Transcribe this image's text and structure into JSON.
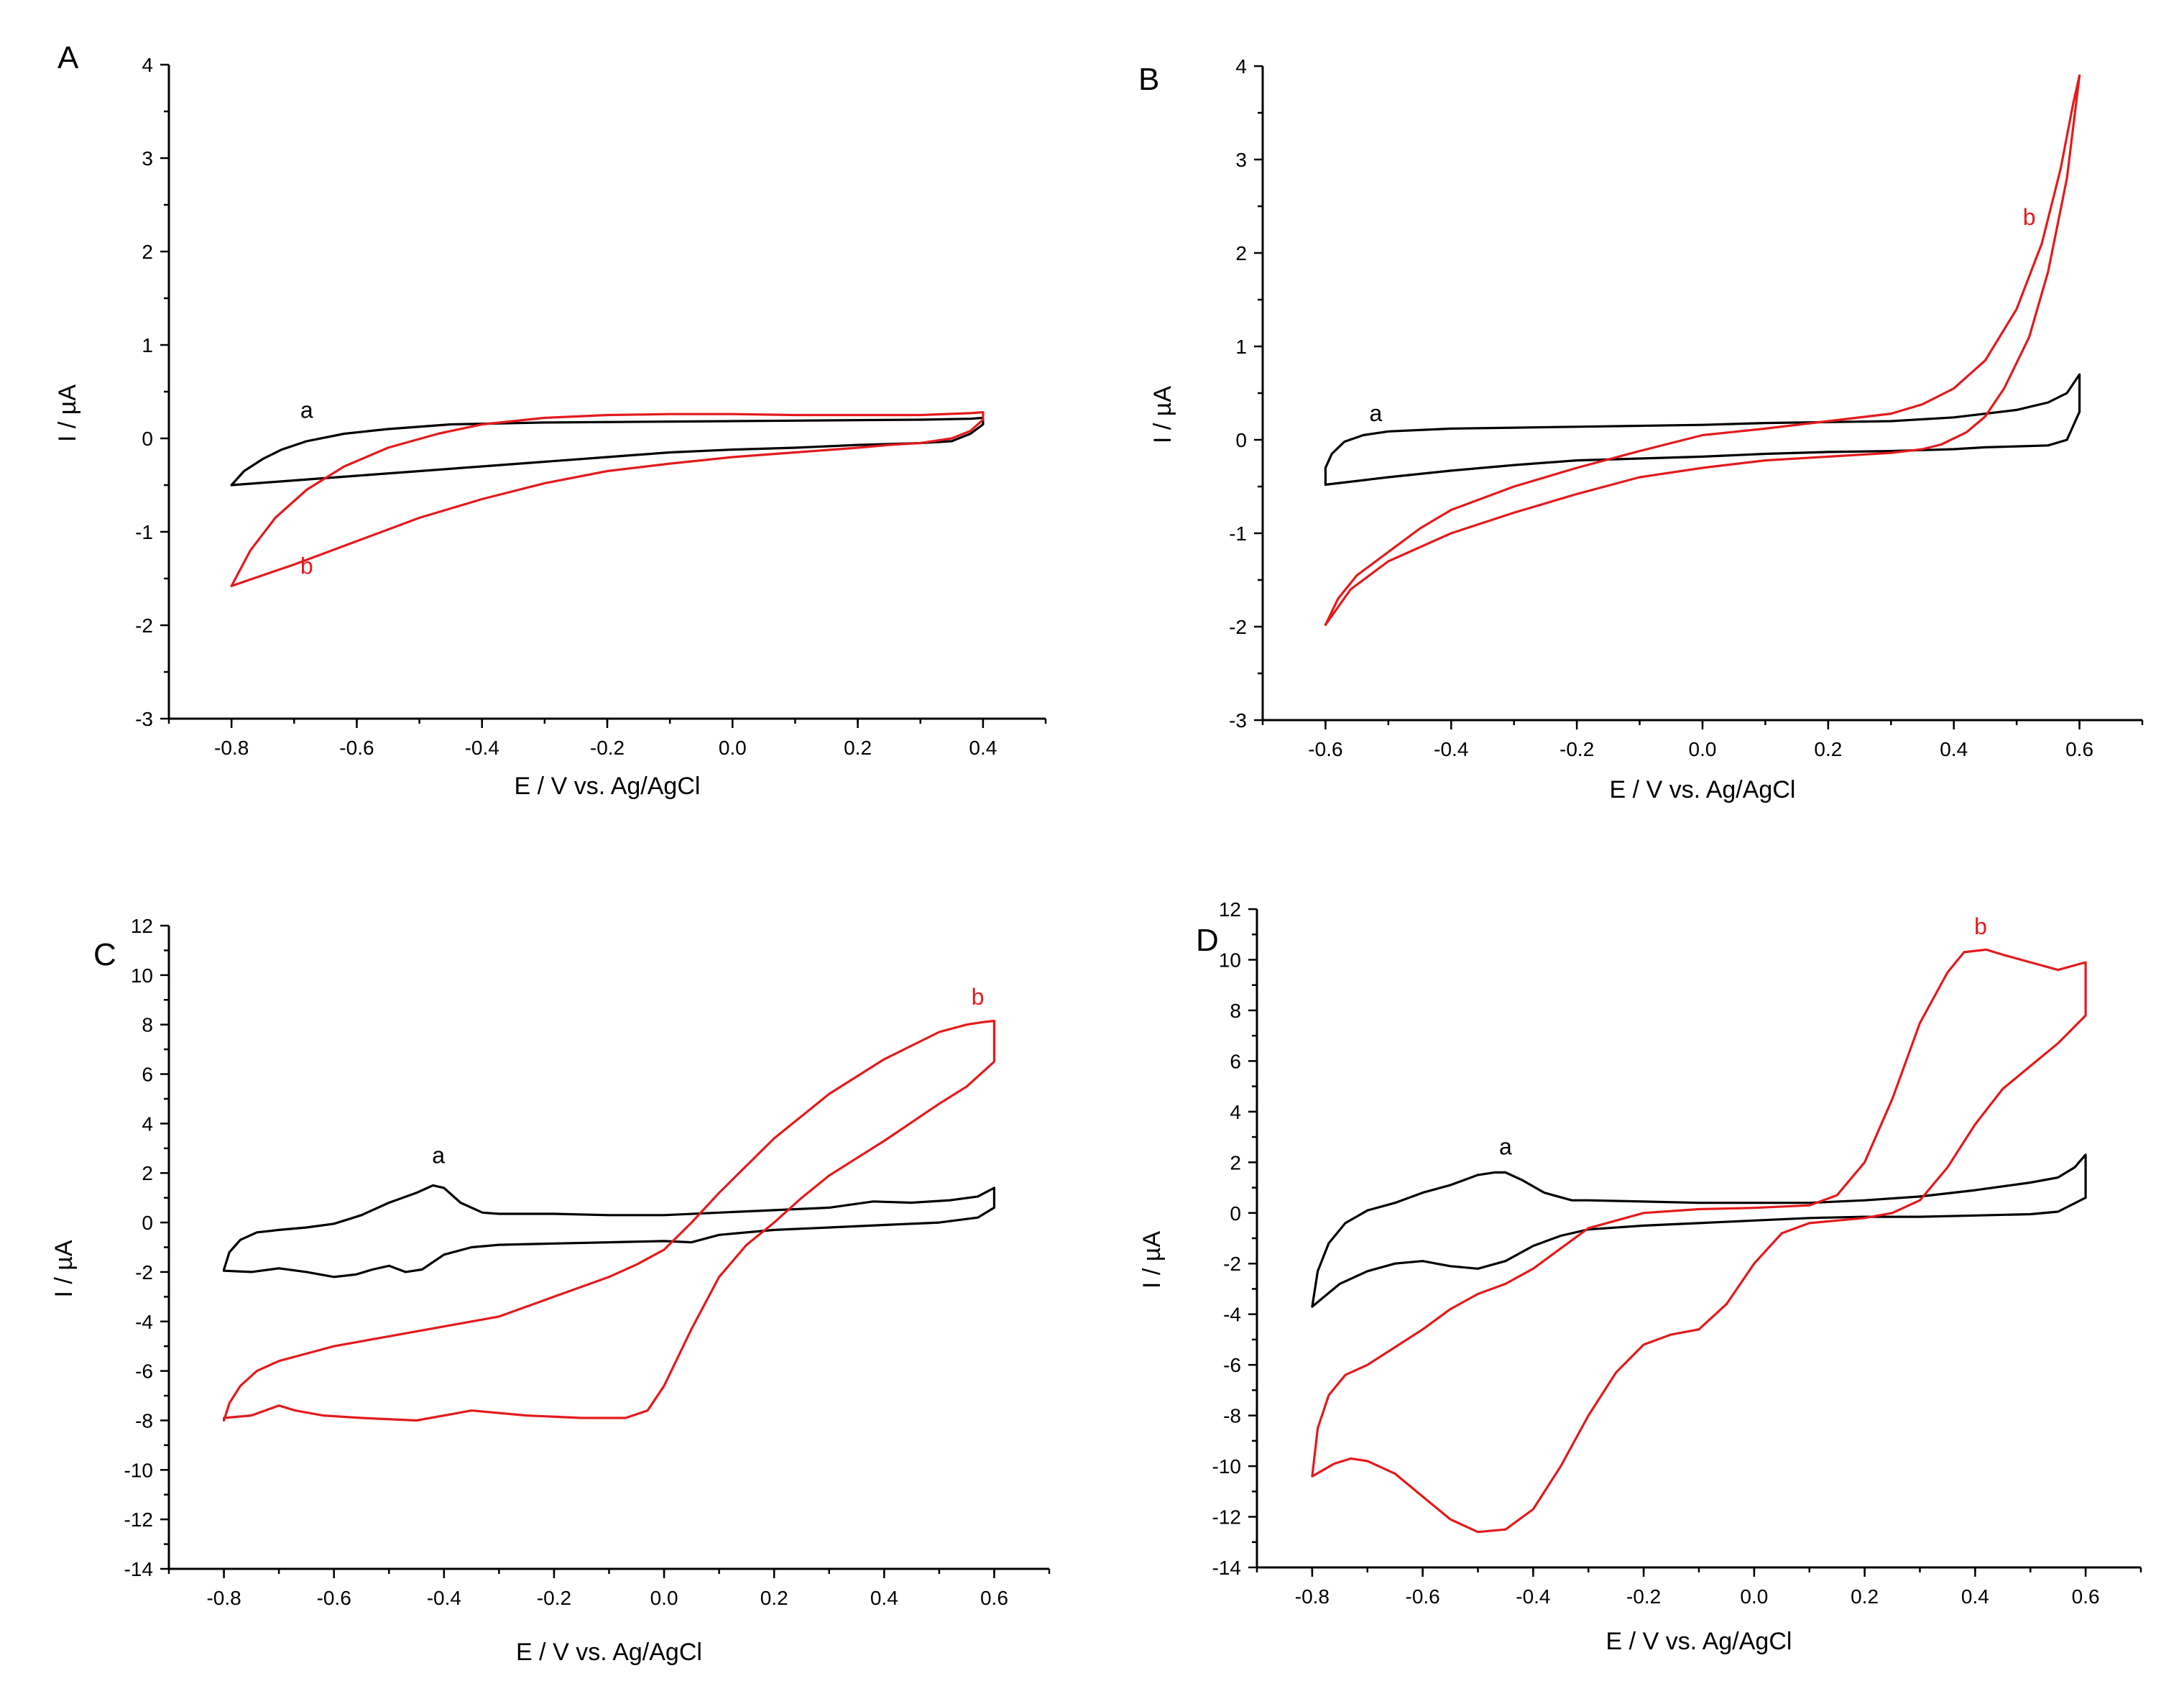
{
  "colors": {
    "a": "#000000",
    "b": "#e31a1c",
    "axis": "#000000"
  },
  "chart_data": [
    {
      "panel": "A",
      "type": "line",
      "xlabel": "E / V vs. Ag/AgCl",
      "ylabel": "I / µA",
      "xlim": [
        -0.9,
        0.5
      ],
      "ylim": [
        -3,
        4
      ],
      "xticks": [
        -0.8,
        -0.6,
        -0.4,
        -0.2,
        0.0,
        0.2,
        0.4
      ],
      "xtick_labels": [
        "-0.8",
        "-0.6",
        "-0.4",
        "-0.2",
        "0.0",
        "0.2",
        "0.4"
      ],
      "yticks": [
        -3,
        -2,
        -1,
        0,
        1,
        2,
        3,
        4
      ],
      "ytick_labels": [
        "-3",
        "-2",
        "-1",
        "0",
        "1",
        "2",
        "3",
        "4"
      ],
      "series": [
        {
          "name": "a",
          "color": "#000000",
          "label_pos": [
            -0.68,
            0.22
          ],
          "x": [
            -0.8,
            -0.78,
            -0.75,
            -0.72,
            -0.68,
            -0.62,
            -0.55,
            -0.45,
            -0.3,
            -0.1,
            0.1,
            0.3,
            0.38,
            0.4,
            0.4,
            0.38,
            0.35,
            0.3,
            0.2,
            0.1,
            0.0,
            -0.1,
            -0.2,
            -0.3,
            -0.4,
            -0.5,
            -0.6,
            -0.7,
            -0.8
          ],
          "y": [
            -0.5,
            -0.35,
            -0.22,
            -0.12,
            -0.03,
            0.05,
            0.1,
            0.15,
            0.17,
            0.18,
            0.19,
            0.2,
            0.21,
            0.22,
            0.15,
            0.05,
            -0.03,
            -0.05,
            -0.07,
            -0.1,
            -0.12,
            -0.15,
            -0.2,
            -0.25,
            -0.3,
            -0.35,
            -0.4,
            -0.45,
            -0.5
          ]
        },
        {
          "name": "b",
          "color": "#e31a1c",
          "label_pos": [
            -0.68,
            -1.45
          ],
          "x": [
            -0.8,
            -0.77,
            -0.73,
            -0.68,
            -0.62,
            -0.55,
            -0.47,
            -0.4,
            -0.3,
            -0.2,
            -0.1,
            0.0,
            0.1,
            0.2,
            0.3,
            0.38,
            0.4,
            0.4,
            0.38,
            0.35,
            0.3,
            0.25,
            0.2,
            0.1,
            0.0,
            -0.1,
            -0.2,
            -0.3,
            -0.4,
            -0.5,
            -0.6,
            -0.7,
            -0.8
          ],
          "y": [
            -1.58,
            -1.2,
            -0.85,
            -0.55,
            -0.3,
            -0.1,
            0.05,
            0.15,
            0.22,
            0.25,
            0.26,
            0.26,
            0.25,
            0.25,
            0.25,
            0.27,
            0.28,
            0.2,
            0.08,
            0.0,
            -0.05,
            -0.07,
            -0.1,
            -0.15,
            -0.2,
            -0.27,
            -0.35,
            -0.48,
            -0.65,
            -0.85,
            -1.1,
            -1.35,
            -1.58
          ]
        }
      ]
    },
    {
      "panel": "B",
      "type": "line",
      "xlabel": "E / V vs. Ag/AgCl",
      "ylabel": "I / µA",
      "xlim": [
        -0.7,
        0.7
      ],
      "ylim": [
        -3,
        4
      ],
      "xticks": [
        -0.6,
        -0.4,
        -0.2,
        0.0,
        0.2,
        0.4,
        0.6
      ],
      "xtick_labels": [
        "-0.6",
        "-0.4",
        "-0.2",
        "0.0",
        "0.2",
        "0.4",
        "0.6"
      ],
      "yticks": [
        -3,
        -2,
        -1,
        0,
        1,
        2,
        3,
        4
      ],
      "ytick_labels": [
        "-3",
        "-2",
        "-1",
        "0",
        "1",
        "2",
        "3",
        "4"
      ],
      "series": [
        {
          "name": "a",
          "color": "#000000",
          "label_pos": [
            -0.52,
            0.2
          ],
          "x": [
            -0.6,
            -0.6,
            -0.59,
            -0.57,
            -0.54,
            -0.5,
            -0.4,
            -0.3,
            -0.2,
            -0.1,
            0.0,
            0.1,
            0.2,
            0.3,
            0.4,
            0.5,
            0.55,
            0.58,
            0.6,
            0.6,
            0.58,
            0.55,
            0.5,
            0.45,
            0.4,
            0.35,
            0.3,
            0.2,
            0.1,
            0.0,
            -0.1,
            -0.2,
            -0.3,
            -0.4,
            -0.5,
            -0.6
          ],
          "y": [
            -0.48,
            -0.3,
            -0.15,
            -0.02,
            0.05,
            0.09,
            0.12,
            0.13,
            0.14,
            0.15,
            0.16,
            0.18,
            0.19,
            0.2,
            0.24,
            0.32,
            0.4,
            0.5,
            0.7,
            0.3,
            0.0,
            -0.06,
            -0.07,
            -0.08,
            -0.1,
            -0.11,
            -0.12,
            -0.13,
            -0.15,
            -0.18,
            -0.2,
            -0.22,
            -0.27,
            -0.33,
            -0.4,
            -0.48
          ]
        },
        {
          "name": "b",
          "color": "#e31a1c",
          "label_pos": [
            0.52,
            2.3
          ],
          "x": [
            -0.6,
            -0.58,
            -0.55,
            -0.5,
            -0.45,
            -0.4,
            -0.3,
            -0.2,
            -0.1,
            0.0,
            0.1,
            0.2,
            0.3,
            0.35,
            0.4,
            0.45,
            0.5,
            0.54,
            0.57,
            0.59,
            0.6,
            0.58,
            0.55,
            0.52,
            0.48,
            0.45,
            0.42,
            0.38,
            0.35,
            0.3,
            0.2,
            0.1,
            0.0,
            -0.1,
            -0.2,
            -0.3,
            -0.4,
            -0.5,
            -0.56,
            -0.6
          ],
          "y": [
            -1.98,
            -1.7,
            -1.45,
            -1.2,
            -0.95,
            -0.75,
            -0.5,
            -0.3,
            -0.12,
            0.05,
            0.12,
            0.2,
            0.28,
            0.38,
            0.55,
            0.85,
            1.4,
            2.1,
            2.9,
            3.6,
            3.9,
            2.8,
            1.8,
            1.1,
            0.55,
            0.25,
            0.08,
            -0.05,
            -0.1,
            -0.14,
            -0.18,
            -0.22,
            -0.3,
            -0.4,
            -0.58,
            -0.78,
            -1.0,
            -1.3,
            -1.6,
            -1.98
          ]
        }
      ]
    },
    {
      "panel": "C",
      "type": "line",
      "xlabel": "E / V vs. Ag/AgCl",
      "ylabel": "I / µA",
      "xlim": [
        -0.9,
        0.7
      ],
      "ylim": [
        -14,
        12
      ],
      "xticks": [
        -0.8,
        -0.6,
        -0.4,
        -0.2,
        0.0,
        0.2,
        0.4,
        0.6
      ],
      "xtick_labels": [
        "-0.8",
        "-0.6",
        "-0.4",
        "-0.2",
        "0.0",
        "0.2",
        "0.4",
        "0.6"
      ],
      "yticks": [
        -14,
        -12,
        -10,
        -8,
        -6,
        -4,
        -2,
        0,
        2,
        4,
        6,
        8,
        10,
        12
      ],
      "ytick_labels": [
        "-14",
        "-12",
        "-10",
        "-8",
        "-6",
        "-4",
        "-2",
        "0",
        "2",
        "4",
        "6",
        "8",
        "10",
        "12"
      ],
      "series": [
        {
          "name": "a",
          "color": "#000000",
          "label_pos": [
            -0.41,
            2.4
          ],
          "x": [
            -0.8,
            -0.79,
            -0.77,
            -0.74,
            -0.7,
            -0.65,
            -0.6,
            -0.55,
            -0.5,
            -0.45,
            -0.42,
            -0.4,
            -0.37,
            -0.33,
            -0.3,
            -0.2,
            -0.1,
            0.0,
            0.1,
            0.2,
            0.3,
            0.38,
            0.45,
            0.52,
            0.57,
            0.6,
            0.6,
            0.57,
            0.5,
            0.4,
            0.3,
            0.2,
            0.1,
            0.05,
            0.0,
            -0.1,
            -0.2,
            -0.3,
            -0.35,
            -0.4,
            -0.44,
            -0.47,
            -0.5,
            -0.53,
            -0.56,
            -0.6,
            -0.65,
            -0.7,
            -0.75,
            -0.8
          ],
          "y": [
            -1.9,
            -1.2,
            -0.7,
            -0.4,
            -0.3,
            -0.2,
            -0.05,
            0.3,
            0.8,
            1.2,
            1.5,
            1.4,
            0.8,
            0.4,
            0.35,
            0.35,
            0.3,
            0.3,
            0.4,
            0.5,
            0.6,
            0.85,
            0.8,
            0.9,
            1.05,
            1.4,
            0.6,
            0.2,
            0.0,
            -0.1,
            -0.2,
            -0.3,
            -0.5,
            -0.8,
            -0.75,
            -0.8,
            -0.85,
            -0.9,
            -1.0,
            -1.3,
            -1.9,
            -2.0,
            -1.75,
            -1.9,
            -2.1,
            -2.2,
            -2.0,
            -1.85,
            -2.0,
            -1.95
          ]
        },
        {
          "name": "b",
          "color": "#e31a1c",
          "label_pos": [
            0.57,
            8.8
          ],
          "x": [
            -0.8,
            -0.79,
            -0.77,
            -0.74,
            -0.7,
            -0.65,
            -0.6,
            -0.5,
            -0.4,
            -0.3,
            -0.2,
            -0.1,
            -0.05,
            0.0,
            0.05,
            0.1,
            0.15,
            0.2,
            0.3,
            0.4,
            0.5,
            0.55,
            0.58,
            0.6,
            0.6,
            0.55,
            0.5,
            0.4,
            0.3,
            0.25,
            0.2,
            0.15,
            0.1,
            0.05,
            0.0,
            -0.03,
            -0.07,
            -0.15,
            -0.25,
            -0.35,
            -0.45,
            -0.55,
            -0.62,
            -0.67,
            -0.7,
            -0.75,
            -0.8
          ],
          "y": [
            -8.0,
            -7.3,
            -6.6,
            -6.0,
            -5.6,
            -5.3,
            -5.0,
            -4.6,
            -4.2,
            -3.8,
            -3.0,
            -2.2,
            -1.7,
            -1.1,
            0.0,
            1.2,
            2.3,
            3.4,
            5.2,
            6.6,
            7.7,
            8.0,
            8.1,
            8.15,
            6.5,
            5.5,
            4.8,
            3.3,
            1.9,
            1.0,
            0.0,
            -0.9,
            -2.2,
            -4.3,
            -6.6,
            -7.6,
            -7.9,
            -7.9,
            -7.8,
            -7.6,
            -8.0,
            -7.9,
            -7.8,
            -7.6,
            -7.4,
            -7.8,
            -7.9
          ]
        }
      ]
    },
    {
      "panel": "D",
      "type": "line",
      "xlabel": "E / V vs. Ag/AgCl",
      "ylabel": "I / µA",
      "xlim": [
        -0.9,
        0.7
      ],
      "ylim": [
        -14,
        12
      ],
      "xticks": [
        -0.8,
        -0.6,
        -0.4,
        -0.2,
        0.0,
        0.2,
        0.4,
        0.6
      ],
      "xtick_labels": [
        "-0.8",
        "-0.6",
        "-0.4",
        "-0.2",
        "0.0",
        "0.2",
        "0.4",
        "0.6"
      ],
      "yticks": [
        -14,
        -12,
        -10,
        -8,
        -6,
        -4,
        -2,
        0,
        2,
        4,
        6,
        8,
        10,
        12
      ],
      "ytick_labels": [
        "-14",
        "-12",
        "-10",
        "-8",
        "-6",
        "-4",
        "-2",
        "0",
        "2",
        "4",
        "6",
        "8",
        "10",
        "12"
      ],
      "series": [
        {
          "name": "a",
          "color": "#000000",
          "label_pos": [
            -0.45,
            2.3
          ],
          "x": [
            -0.8,
            -0.79,
            -0.77,
            -0.74,
            -0.7,
            -0.65,
            -0.6,
            -0.55,
            -0.5,
            -0.47,
            -0.45,
            -0.42,
            -0.38,
            -0.33,
            -0.3,
            -0.2,
            -0.1,
            0.0,
            0.1,
            0.2,
            0.3,
            0.4,
            0.5,
            0.55,
            0.58,
            0.6,
            0.6,
            0.55,
            0.5,
            0.4,
            0.3,
            0.2,
            0.1,
            0.0,
            -0.1,
            -0.2,
            -0.3,
            -0.35,
            -0.4,
            -0.45,
            -0.5,
            -0.55,
            -0.6,
            -0.65,
            -0.7,
            -0.75,
            -0.8
          ],
          "y": [
            -3.7,
            -2.3,
            -1.2,
            -0.4,
            0.1,
            0.4,
            0.8,
            1.1,
            1.5,
            1.6,
            1.6,
            1.3,
            0.8,
            0.5,
            0.5,
            0.45,
            0.4,
            0.4,
            0.4,
            0.5,
            0.65,
            0.9,
            1.2,
            1.4,
            1.8,
            2.3,
            0.6,
            0.05,
            -0.05,
            -0.1,
            -0.15,
            -0.15,
            -0.2,
            -0.3,
            -0.4,
            -0.5,
            -0.65,
            -0.9,
            -1.3,
            -1.9,
            -2.2,
            -2.1,
            -1.9,
            -2.0,
            -2.3,
            -2.8,
            -3.7
          ]
        },
        {
          "name": "b",
          "color": "#e31a1c",
          "label_pos": [
            0.41,
            11.0
          ],
          "x": [
            -0.8,
            -0.79,
            -0.77,
            -0.74,
            -0.7,
            -0.65,
            -0.6,
            -0.55,
            -0.5,
            -0.45,
            -0.4,
            -0.35,
            -0.3,
            -0.2,
            -0.1,
            0.0,
            0.1,
            0.15,
            0.2,
            0.25,
            0.3,
            0.35,
            0.38,
            0.42,
            0.45,
            0.5,
            0.55,
            0.6,
            0.6,
            0.55,
            0.5,
            0.45,
            0.4,
            0.35,
            0.3,
            0.25,
            0.2,
            0.15,
            0.1,
            0.05,
            0.0,
            -0.05,
            -0.1,
            -0.15,
            -0.2,
            -0.25,
            -0.3,
            -0.35,
            -0.4,
            -0.45,
            -0.5,
            -0.55,
            -0.6,
            -0.65,
            -0.7,
            -0.73,
            -0.76,
            -0.8
          ],
          "y": [
            -10.4,
            -8.5,
            -7.2,
            -6.4,
            -6.0,
            -5.3,
            -4.6,
            -3.8,
            -3.2,
            -2.8,
            -2.2,
            -1.4,
            -0.6,
            0.0,
            0.15,
            0.2,
            0.3,
            0.7,
            2.0,
            4.5,
            7.5,
            9.5,
            10.3,
            10.4,
            10.2,
            9.9,
            9.6,
            9.9,
            7.8,
            6.7,
            5.8,
            4.9,
            3.5,
            1.8,
            0.5,
            0.0,
            -0.2,
            -0.3,
            -0.4,
            -0.8,
            -2.0,
            -3.6,
            -4.6,
            -4.8,
            -5.2,
            -6.3,
            -8.0,
            -10.0,
            -11.7,
            -12.5,
            -12.6,
            -12.1,
            -11.2,
            -10.3,
            -9.8,
            -9.7,
            -9.9,
            -10.4
          ]
        }
      ]
    }
  ]
}
